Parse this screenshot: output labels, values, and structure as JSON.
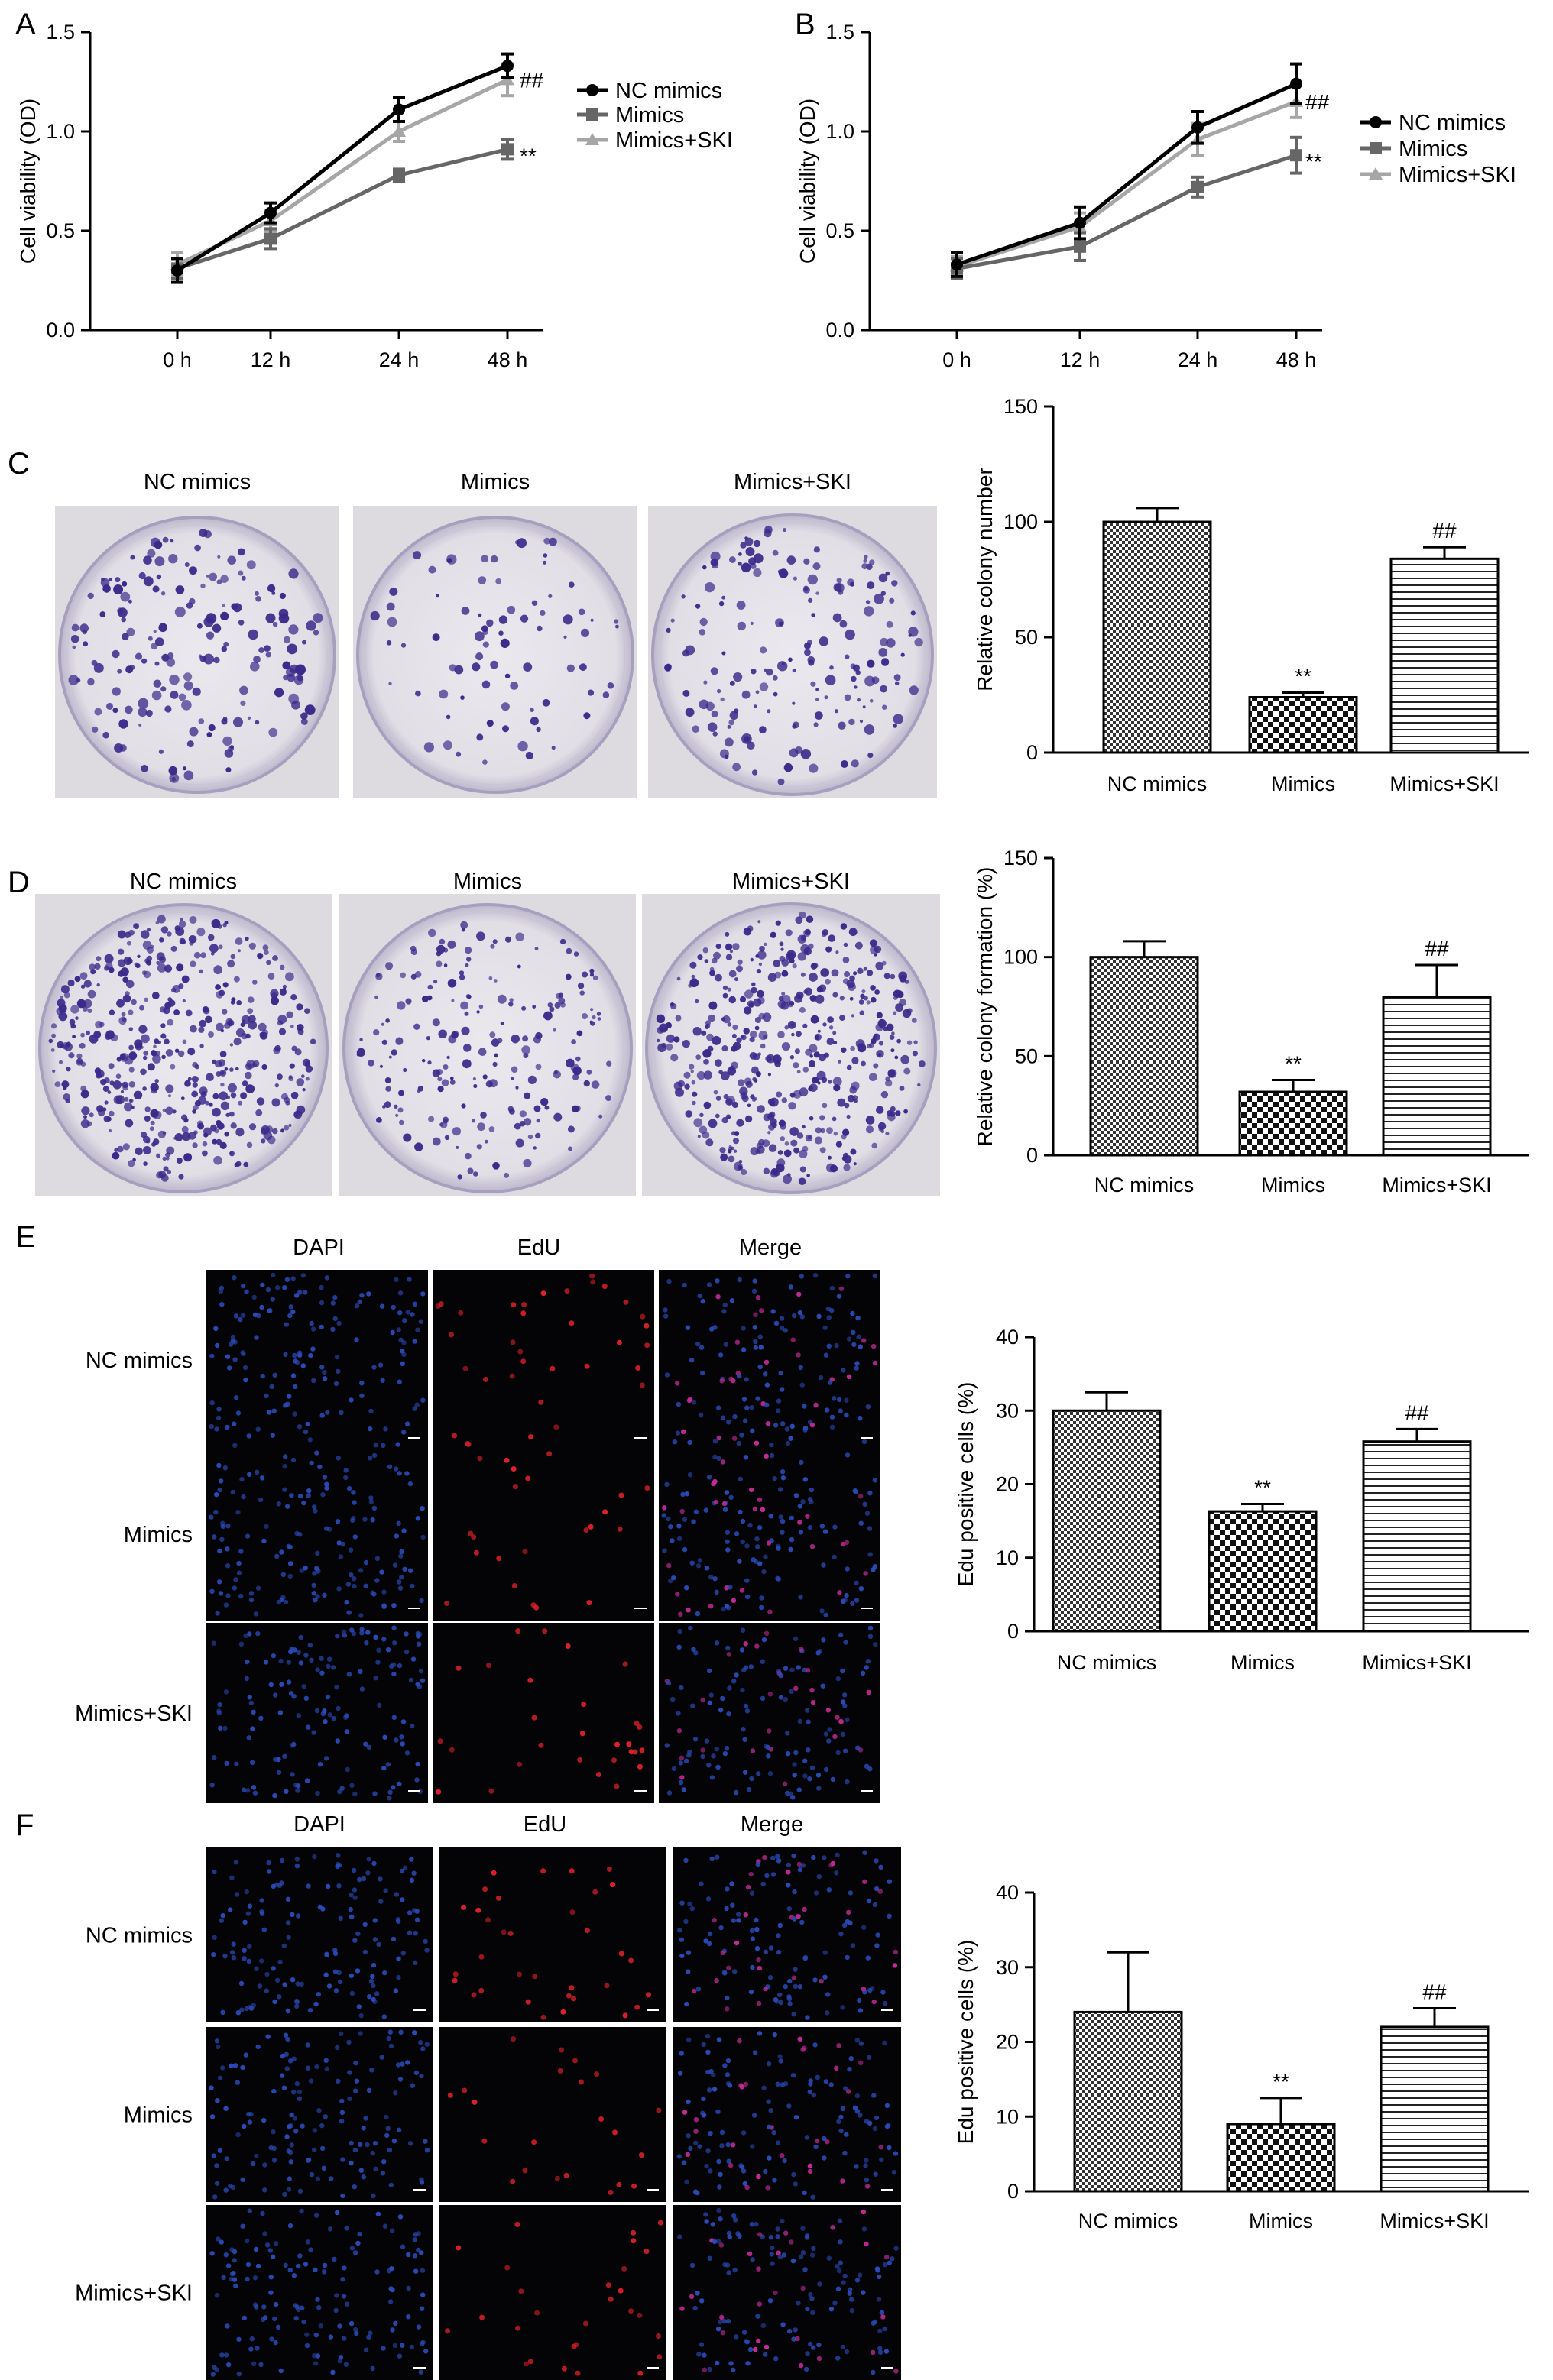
{
  "colors": {
    "nc": "#000000",
    "mimics": "#666666",
    "ski": "#a6a6a6",
    "dish_bg": "#dedbe0",
    "colony": "#3a2a8a",
    "fluor_bg": "#040406",
    "dapi": "#2a4ab8",
    "edu": "#e0202a",
    "merge": "#c82a9a"
  },
  "figure": {
    "panels": [
      {
        "letter": "A",
        "type": "line-chart"
      },
      {
        "letter": "B",
        "type": "line-chart"
      },
      {
        "letter": "C",
        "type": "plate-images-and-bar-chart"
      },
      {
        "letter": "D",
        "type": "plate-images-and-bar-chart"
      },
      {
        "letter": "E",
        "type": "fluorescence-images-and-bar-chart"
      },
      {
        "letter": "F",
        "type": "fluorescence-images-and-bar-chart"
      }
    ],
    "plate_labels": [
      "NC mimics",
      "Mimics",
      "Mimics+SKI"
    ],
    "fluor_col_labels": [
      "DAPI",
      "EdU",
      "Merge"
    ],
    "fluor_row_labels": [
      "NC mimics",
      "Mimics",
      "Mimics+SKI"
    ]
  },
  "chart_data": [
    {
      "panel": "A",
      "type": "line",
      "x": [
        "0 h",
        "12 h",
        "24 h",
        "48 h"
      ],
      "ylabel": "Cell viability (OD)",
      "ylim": [
        0,
        1.5
      ],
      "yticks": [
        "0.0",
        "0.5",
        "1.0",
        "1.5"
      ],
      "legend_position": "right",
      "series": [
        {
          "name": "NC mimics",
          "values": [
            0.3,
            0.59,
            1.11,
            1.33
          ],
          "err": [
            0.06,
            0.05,
            0.06,
            0.06
          ],
          "marker": "circle",
          "color": "#000000"
        },
        {
          "name": "Mimics",
          "values": [
            0.31,
            0.46,
            0.78,
            0.91
          ],
          "err": [
            0.05,
            0.05,
            0.03,
            0.05
          ],
          "marker": "square",
          "color": "#666666"
        },
        {
          "name": "Mimics+SKI",
          "values": [
            0.33,
            0.55,
            1.0,
            1.26
          ],
          "err": [
            0.06,
            0.05,
            0.05,
            0.08
          ],
          "marker": "triangle",
          "color": "#a6a6a6"
        }
      ],
      "annotations": [
        {
          "text": "##",
          "x": "48 h",
          "y": 1.26
        },
        {
          "text": "**",
          "x": "48 h",
          "y": 0.91
        }
      ]
    },
    {
      "panel": "B",
      "type": "line",
      "x": [
        "0 h",
        "12 h",
        "24 h",
        "48 h"
      ],
      "ylabel": "Cell viability (OD)",
      "ylim": [
        0,
        1.5
      ],
      "yticks": [
        "0.0",
        "0.5",
        "1.0",
        "1.5"
      ],
      "legend_position": "right",
      "series": [
        {
          "name": "NC mimics",
          "values": [
            0.33,
            0.54,
            1.02,
            1.24
          ],
          "err": [
            0.06,
            0.08,
            0.08,
            0.1
          ],
          "marker": "circle",
          "color": "#000000"
        },
        {
          "name": "Mimics",
          "values": [
            0.31,
            0.42,
            0.72,
            0.88
          ],
          "err": [
            0.05,
            0.07,
            0.05,
            0.09
          ],
          "marker": "square",
          "color": "#666666"
        },
        {
          "name": "Mimics+SKI",
          "values": [
            0.32,
            0.52,
            0.96,
            1.15
          ],
          "err": [
            0.05,
            0.07,
            0.08,
            0.08
          ],
          "marker": "triangle",
          "color": "#a6a6a6"
        }
      ],
      "annotations": [
        {
          "text": "##",
          "x": "48 h",
          "y": 1.15
        },
        {
          "text": "**",
          "x": "48 h",
          "y": 0.88
        }
      ]
    },
    {
      "panel": "C",
      "type": "bar",
      "categories": [
        "NC mimics",
        "Mimics",
        "Mimics+SKI"
      ],
      "values": [
        100,
        24,
        84
      ],
      "err": [
        6,
        2,
        5
      ],
      "patterns": [
        "checker",
        "checker-large",
        "hlines"
      ],
      "ylabel": "Relative colony number",
      "ylim": [
        0,
        150
      ],
      "yticks": [
        "0",
        "50",
        "100",
        "150"
      ],
      "annotations": [
        "",
        "**",
        "##"
      ]
    },
    {
      "panel": "D",
      "type": "bar",
      "categories": [
        "NC mimics",
        "Mimics",
        "Mimics+SKI"
      ],
      "values": [
        100,
        32,
        80
      ],
      "err": [
        8,
        6,
        16
      ],
      "patterns": [
        "checker",
        "checker-large",
        "hlines"
      ],
      "ylabel": "Relative colony formation (%)",
      "ylim": [
        0,
        150
      ],
      "yticks": [
        "0",
        "50",
        "100",
        "150"
      ],
      "annotations": [
        "",
        "**",
        "##"
      ]
    },
    {
      "panel": "E",
      "type": "bar",
      "categories": [
        "NC mimics",
        "Mimics",
        "Mimics+SKI"
      ],
      "values": [
        30,
        16.3,
        25.8
      ],
      "err": [
        2.5,
        1,
        1.7
      ],
      "patterns": [
        "checker",
        "checker-large",
        "hlines"
      ],
      "ylabel": "Edu positive cells (%)",
      "ylim": [
        0,
        40
      ],
      "yticks": [
        "0",
        "10",
        "20",
        "30",
        "40"
      ],
      "annotations": [
        "",
        "**",
        "##"
      ]
    },
    {
      "panel": "F",
      "type": "bar",
      "categories": [
        "NC mimics",
        "Mimics",
        "Mimics+SKI"
      ],
      "values": [
        24,
        9,
        22
      ],
      "err": [
        8,
        3.5,
        2.5
      ],
      "patterns": [
        "checker",
        "checker-large",
        "hlines"
      ],
      "ylabel": "Edu positive cells (%)",
      "ylim": [
        0,
        40
      ],
      "yticks": [
        "0",
        "10",
        "20",
        "30",
        "40"
      ],
      "annotations": [
        "",
        "**",
        "##"
      ]
    }
  ]
}
